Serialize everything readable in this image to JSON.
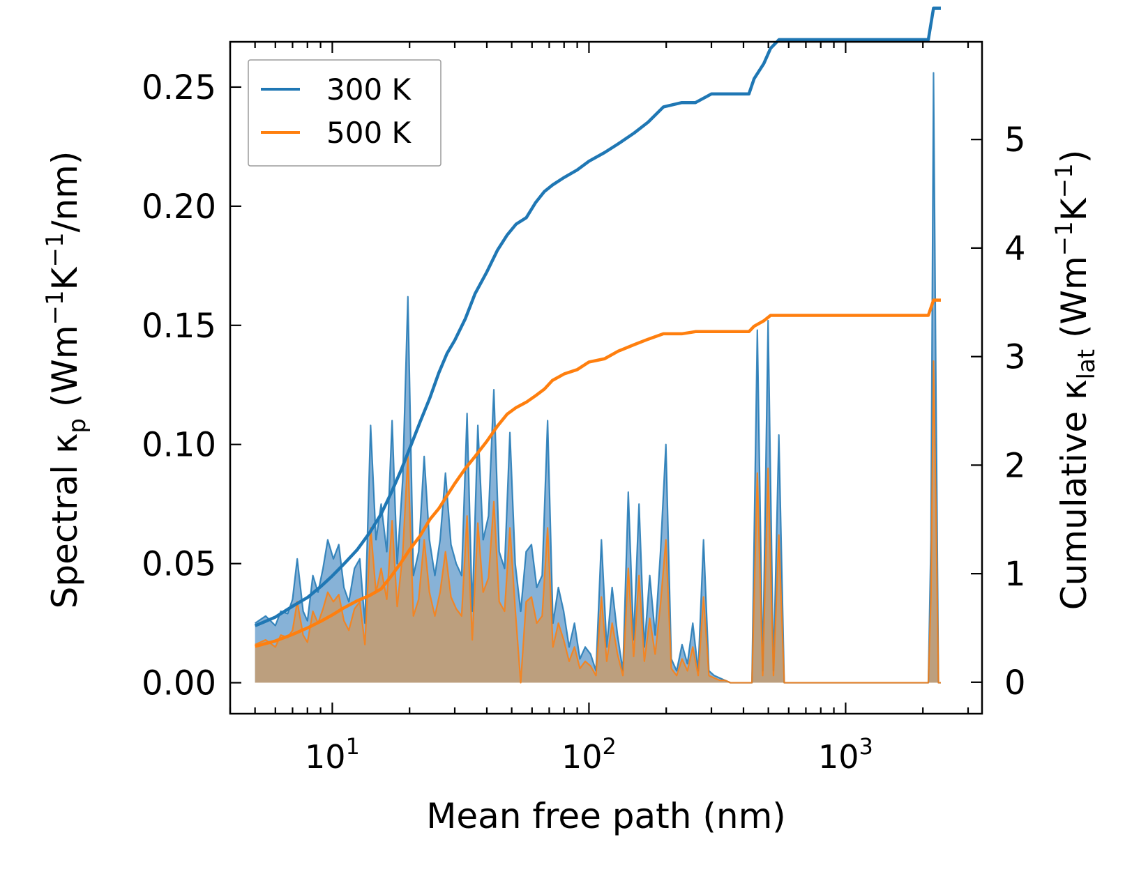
{
  "chart_data": {
    "type": "line",
    "xlabel": "Mean free path (nm)",
    "x_scale": "log",
    "xlim": [
      4.0,
      3400
    ],
    "x_ticks": [
      10,
      100,
      1000
    ],
    "x_tick_labels": [
      {
        "base": "10",
        "exp": "1"
      },
      {
        "base": "10",
        "exp": "2"
      },
      {
        "base": "10",
        "exp": "3"
      }
    ],
    "ylabel_left": {
      "pre": "Spectral κ",
      "sub1": "p",
      "mid1": " (Wm",
      "sup1": "−1",
      "mid2": "K",
      "sup2": "−1",
      "post": "/nm)"
    },
    "ylim_left": [
      -0.013,
      0.269
    ],
    "yticks_left": [
      0.0,
      0.05,
      0.1,
      0.15,
      0.2,
      0.25
    ],
    "ytick_labels_left": [
      "0.00",
      "0.05",
      "0.10",
      "0.15",
      "0.20",
      "0.25"
    ],
    "ylabel_right": {
      "pre": "Cumulative κ",
      "sub1": "lat",
      "mid1": " (Wm",
      "sup1": "−1",
      "mid2": "K",
      "sup2": "−1",
      "post": ")"
    },
    "ylim_right": [
      -0.29,
      5.9
    ],
    "yticks_right": [
      0,
      1,
      2,
      3,
      4,
      5
    ],
    "ytick_labels_right": [
      "0",
      "1",
      "2",
      "3",
      "4",
      "5"
    ],
    "legend": {
      "location": "top-left",
      "entries": [
        "300 K",
        "500 K"
      ]
    },
    "colors": {
      "300 K": "#1f77b4",
      "500 K": "#ff7f0e",
      "fill_300": "#7aaad3",
      "fill_500": "#c59b6f"
    },
    "spectral_series": [
      {
        "name": "300 K",
        "x": [
          5.0,
          5.5,
          6.0,
          6.3,
          6.7,
          7.0,
          7.3,
          7.7,
          8.0,
          8.4,
          8.8,
          9.2,
          9.6,
          10.1,
          10.6,
          11.1,
          11.6,
          12.2,
          12.8,
          13.4,
          14.1,
          14.8,
          15.5,
          16.3,
          17.1,
          17.9,
          18.8,
          19.7,
          20.7,
          21.7,
          22.8,
          23.9,
          25.1,
          26.3,
          27.6,
          29.0,
          30.4,
          31.9,
          33.5,
          35.1,
          36.9,
          38.7,
          40.6,
          42.6,
          44.7,
          46.9,
          49.2,
          51.6,
          54.2,
          56.9,
          59.7,
          62.6,
          65.7,
          69.0,
          72.4,
          76.0,
          79.7,
          83.7,
          87.8,
          92.2,
          96.7,
          101.5,
          106.5,
          111.8,
          117.3,
          123.1,
          129.2,
          135.6,
          142.3,
          149.3,
          156.7,
          164.4,
          172.5,
          181.1,
          190.0,
          199.4,
          209.3,
          219.6,
          230.5,
          241.9,
          253.8,
          266.4,
          279.5,
          293.3,
          307.8,
          323.1,
          339.0,
          355.8,
          373.4,
          391.8,
          411.2,
          431.5,
          452.9,
          475.3,
          498.8,
          523.4,
          549.3,
          576.5,
          605.0,
          1000.0,
          1500.0,
          2100.0,
          2150.0,
          2200.0,
          2250.0,
          2300.0,
          2350.0
        ],
        "y": [
          0.025,
          0.028,
          0.024,
          0.03,
          0.029,
          0.035,
          0.052,
          0.03,
          0.026,
          0.045,
          0.038,
          0.048,
          0.06,
          0.052,
          0.058,
          0.04,
          0.034,
          0.048,
          0.052,
          0.025,
          0.108,
          0.06,
          0.075,
          0.055,
          0.11,
          0.05,
          0.085,
          0.162,
          0.045,
          0.055,
          0.095,
          0.06,
          0.045,
          0.06,
          0.088,
          0.058,
          0.05,
          0.045,
          0.113,
          0.03,
          0.108,
          0.06,
          0.07,
          0.123,
          0.055,
          0.048,
          0.105,
          0.05,
          0.03,
          0.055,
          0.058,
          0.04,
          0.045,
          0.11,
          0.025,
          0.04,
          0.03,
          0.015,
          0.025,
          0.01,
          0.015,
          0.012,
          0.005,
          0.06,
          0.015,
          0.04,
          0.02,
          0.005,
          0.08,
          0.018,
          0.075,
          0.015,
          0.045,
          0.02,
          0.055,
          0.1,
          0.01,
          0.005,
          0.016,
          0.008,
          0.025,
          0.005,
          0.06,
          0.005,
          0.003,
          0.002,
          0.001,
          0.0,
          0.0,
          0.0,
          0.0,
          0.0,
          0.148,
          0.005,
          0.152,
          0.005,
          0.104,
          0.0,
          0.0,
          0.0,
          0.0,
          0.0,
          0.06,
          0.256,
          0.12,
          0.0,
          0.0
        ]
      },
      {
        "name": "500 K",
        "x": [
          5.0,
          5.5,
          6.0,
          6.3,
          6.7,
          7.0,
          7.3,
          7.7,
          8.0,
          8.4,
          8.8,
          9.2,
          9.6,
          10.1,
          10.6,
          11.1,
          11.6,
          12.2,
          12.8,
          13.4,
          14.1,
          14.8,
          15.5,
          16.3,
          17.1,
          17.9,
          18.8,
          19.7,
          20.7,
          21.7,
          22.8,
          23.9,
          25.1,
          26.3,
          27.6,
          29.0,
          30.4,
          31.9,
          33.5,
          35.1,
          36.9,
          38.7,
          40.6,
          42.6,
          44.7,
          46.9,
          49.2,
          51.6,
          54.2,
          56.9,
          59.7,
          62.6,
          65.7,
          69.0,
          72.4,
          76.0,
          79.7,
          83.7,
          87.8,
          92.2,
          96.7,
          101.5,
          106.5,
          111.8,
          117.3,
          123.1,
          129.2,
          135.6,
          142.3,
          149.3,
          156.7,
          164.4,
          172.5,
          181.1,
          190.0,
          199.4,
          209.3,
          219.6,
          230.5,
          241.9,
          253.8,
          266.4,
          279.5,
          293.3,
          307.8,
          323.1,
          339.0,
          355.8,
          373.4,
          391.8,
          411.2,
          431.5,
          452.9,
          475.3,
          498.8,
          523.4,
          549.3,
          576.5,
          605.0,
          1000.0,
          1500.0,
          2100.0,
          2150.0,
          2200.0,
          2250.0,
          2300.0,
          2350.0
        ],
        "y": [
          0.016,
          0.018,
          0.015,
          0.02,
          0.019,
          0.022,
          0.034,
          0.02,
          0.017,
          0.03,
          0.025,
          0.031,
          0.038,
          0.034,
          0.037,
          0.026,
          0.022,
          0.031,
          0.034,
          0.016,
          0.065,
          0.038,
          0.048,
          0.035,
          0.068,
          0.032,
          0.054,
          0.095,
          0.028,
          0.035,
          0.06,
          0.038,
          0.028,
          0.038,
          0.055,
          0.036,
          0.031,
          0.028,
          0.07,
          0.018,
          0.067,
          0.038,
          0.044,
          0.076,
          0.034,
          0.03,
          0.065,
          0.031,
          0.0,
          0.034,
          0.036,
          0.025,
          0.028,
          0.065,
          0.015,
          0.025,
          0.018,
          0.009,
          0.015,
          0.006,
          0.009,
          0.007,
          0.003,
          0.036,
          0.009,
          0.025,
          0.012,
          0.003,
          0.048,
          0.011,
          0.045,
          0.009,
          0.027,
          0.012,
          0.033,
          0.06,
          0.006,
          0.003,
          0.01,
          0.005,
          0.015,
          0.003,
          0.036,
          0.003,
          0.002,
          0.001,
          0.001,
          0.0,
          0.0,
          0.0,
          0.0,
          0.0,
          0.088,
          0.003,
          0.09,
          0.003,
          0.062,
          0.0,
          0.0,
          0.0,
          0.0,
          0.0,
          0.036,
          0.135,
          0.072,
          0.0,
          0.0
        ]
      }
    ],
    "cumulative_series": [
      {
        "name": "300 K",
        "x": [
          5.0,
          6.0,
          7.0,
          8.0,
          9.0,
          10.0,
          11.0,
          12.5,
          14.0,
          15.5,
          17.0,
          18.5,
          20.0,
          22.0,
          24.0,
          26.0,
          28.0,
          30.0,
          33.0,
          36.0,
          40.0,
          44.0,
          48.0,
          52.0,
          57.0,
          62.0,
          67.0,
          72.0,
          80.0,
          90.0,
          100.0,
          115.0,
          130.0,
          150.0,
          170.0,
          195.0,
          230.0,
          260.0,
          300.0,
          350.0,
          420.0,
          440.0,
          480.0,
          510.0,
          550.0,
          1000.0,
          2100.0,
          2200.0,
          2350.0
        ],
        "y": [
          0.52,
          0.6,
          0.7,
          0.78,
          0.88,
          0.98,
          1.08,
          1.22,
          1.38,
          1.55,
          1.75,
          1.95,
          2.15,
          2.4,
          2.62,
          2.85,
          3.03,
          3.15,
          3.35,
          3.58,
          3.78,
          3.98,
          4.12,
          4.22,
          4.28,
          4.42,
          4.52,
          4.58,
          4.65,
          4.72,
          4.8,
          4.88,
          4.96,
          5.06,
          5.16,
          5.3,
          5.34,
          5.34,
          5.42,
          5.42,
          5.42,
          5.56,
          5.7,
          5.84,
          5.92,
          5.92,
          5.92,
          6.21,
          6.21
        ]
      },
      {
        "name": "500 K",
        "x": [
          5.0,
          6.0,
          7.0,
          8.0,
          9.0,
          10.0,
          11.0,
          12.5,
          14.0,
          15.5,
          17.0,
          18.5,
          20.0,
          22.0,
          24.0,
          26.0,
          28.0,
          30.0,
          33.0,
          36.0,
          40.0,
          44.0,
          48.0,
          52.0,
          57.0,
          62.0,
          67.0,
          72.0,
          80.0,
          90.0,
          100.0,
          115.0,
          130.0,
          150.0,
          170.0,
          195.0,
          230.0,
          260.0,
          300.0,
          350.0,
          420.0,
          440.0,
          480.0,
          510.0,
          550.0,
          1000.0,
          2100.0,
          2200.0,
          2350.0
        ],
        "y": [
          0.33,
          0.38,
          0.44,
          0.5,
          0.56,
          0.62,
          0.68,
          0.75,
          0.8,
          0.86,
          0.98,
          1.1,
          1.22,
          1.35,
          1.5,
          1.6,
          1.72,
          1.83,
          1.97,
          2.08,
          2.22,
          2.36,
          2.47,
          2.53,
          2.58,
          2.64,
          2.7,
          2.78,
          2.84,
          2.88,
          2.95,
          2.98,
          3.05,
          3.11,
          3.16,
          3.21,
          3.21,
          3.23,
          3.23,
          3.23,
          3.23,
          3.28,
          3.33,
          3.38,
          3.38,
          3.38,
          3.38,
          3.52,
          3.52
        ]
      }
    ]
  }
}
